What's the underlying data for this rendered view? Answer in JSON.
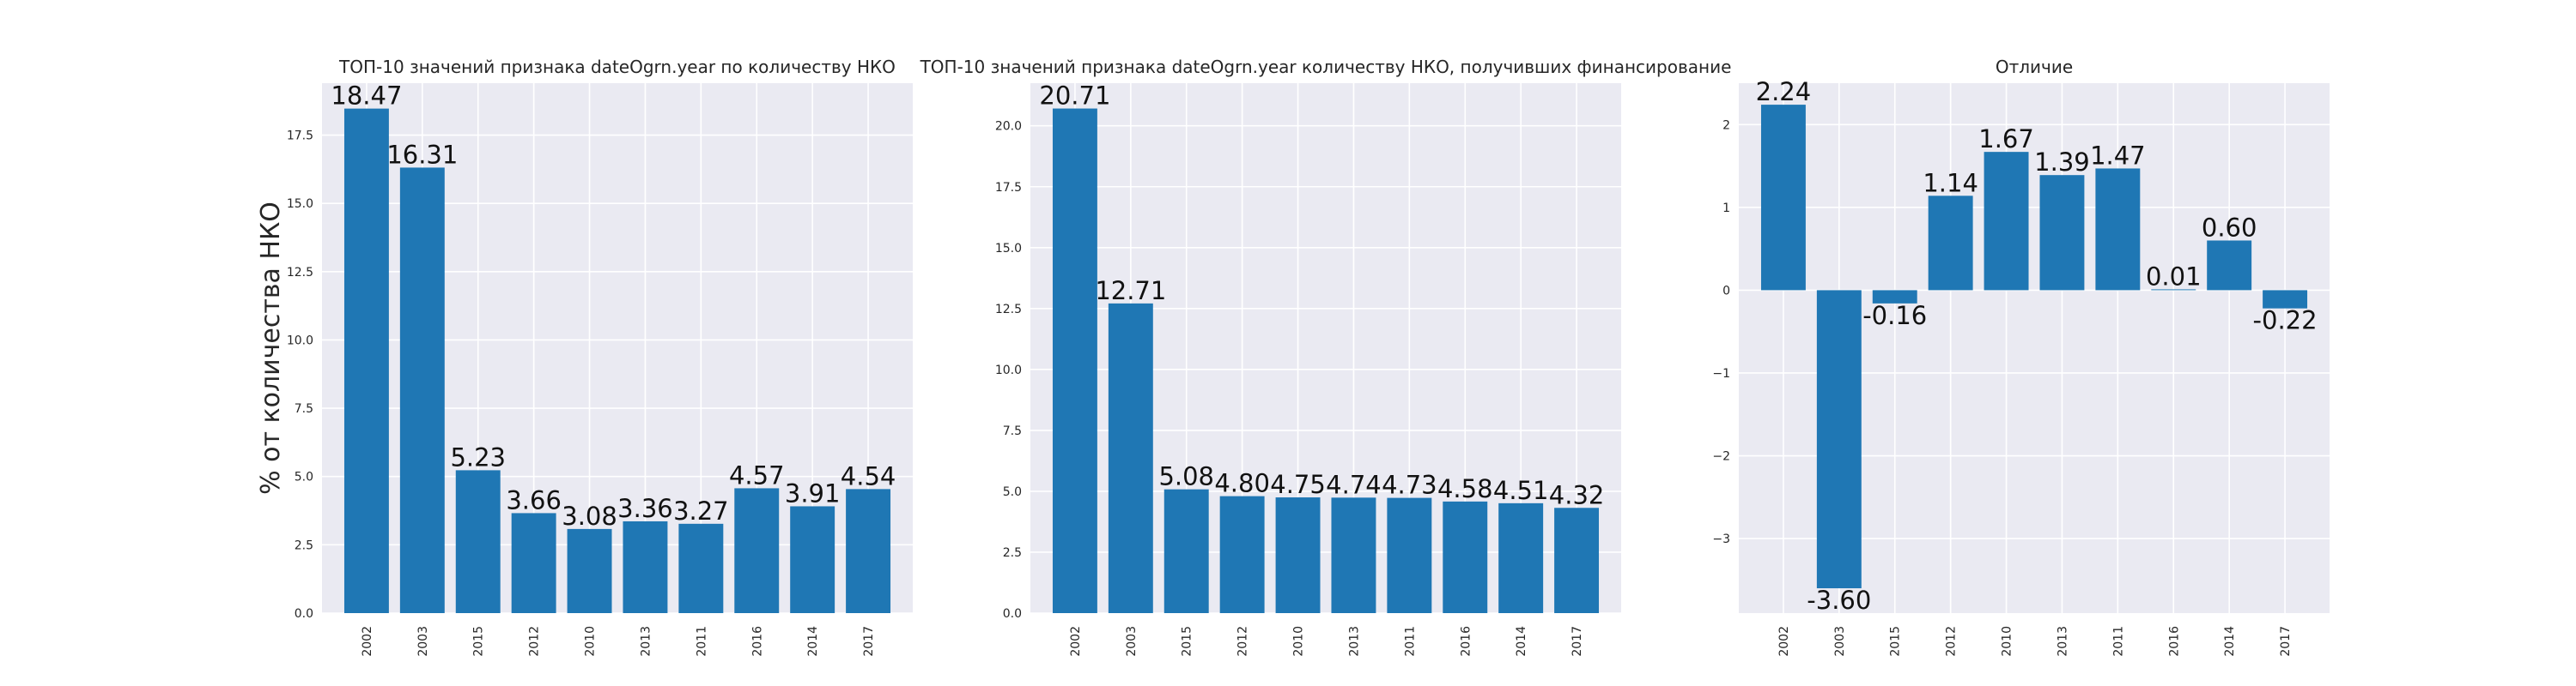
{
  "chart_data": [
    {
      "type": "bar",
      "title": "ТОП-10 значений признака dateOgrn.year по количеству НКО",
      "ylabel": "% от количества НКО",
      "categories": [
        "2002",
        "2003",
        "2015",
        "2012",
        "2010",
        "2013",
        "2011",
        "2016",
        "2014",
        "2017"
      ],
      "values": [
        18.47,
        16.31,
        5.23,
        3.66,
        3.08,
        3.36,
        3.27,
        4.57,
        3.91,
        4.54
      ],
      "data_labels": [
        "18.47",
        "16.31",
        "5.23",
        "3.66",
        "3.08",
        "3.36",
        "3.27",
        "4.57",
        "3.91",
        "4.54"
      ],
      "ylim": [
        0,
        19.4
      ],
      "yticks": [
        0,
        2.5,
        5,
        7.5,
        10,
        12.5,
        15,
        17.5
      ],
      "ytick_labels": [
        "0.0",
        "2.5",
        "5.0",
        "7.5",
        "10.0",
        "12.5",
        "15.0",
        "17.5"
      ],
      "grid": true
    },
    {
      "type": "bar",
      "title": "ТОП-10 значений признака dateOgrn.year количеству НКО, получивших финансирование",
      "ylabel": "",
      "categories": [
        "2002",
        "2003",
        "2015",
        "2012",
        "2010",
        "2013",
        "2011",
        "2016",
        "2014",
        "2017"
      ],
      "values": [
        20.71,
        12.71,
        5.08,
        4.8,
        4.75,
        4.74,
        4.73,
        4.58,
        4.51,
        4.32
      ],
      "data_labels": [
        "20.71",
        "12.71",
        "5.08",
        "4.80",
        "4.75",
        "4.74",
        "4.73",
        "4.58",
        "4.51",
        "4.32"
      ],
      "ylim": [
        0,
        21.75
      ],
      "yticks": [
        0,
        2.5,
        5,
        7.5,
        10,
        12.5,
        15,
        17.5,
        20
      ],
      "ytick_labels": [
        "0.0",
        "2.5",
        "5.0",
        "7.5",
        "10.0",
        "12.5",
        "15.0",
        "17.5",
        "20.0"
      ],
      "grid": true
    },
    {
      "type": "bar",
      "title": "Отличие",
      "ylabel": "",
      "categories": [
        "2002",
        "2003",
        "2015",
        "2012",
        "2010",
        "2013",
        "2011",
        "2016",
        "2014",
        "2017"
      ],
      "values": [
        2.24,
        -3.6,
        -0.16,
        1.14,
        1.67,
        1.39,
        1.47,
        0.01,
        0.6,
        -0.22
      ],
      "data_labels": [
        "2.24",
        "-3.60",
        "-0.16",
        "1.14",
        "1.67",
        "1.39",
        "1.47",
        "0.01",
        "0.60",
        "-0.22"
      ],
      "ylim": [
        -3.9,
        2.5
      ],
      "yticks": [
        -3,
        -2,
        -1,
        0,
        1,
        2
      ],
      "ytick_labels": [
        "−3",
        "−2",
        "−1",
        "0",
        "1",
        "2"
      ],
      "grid": true
    }
  ]
}
